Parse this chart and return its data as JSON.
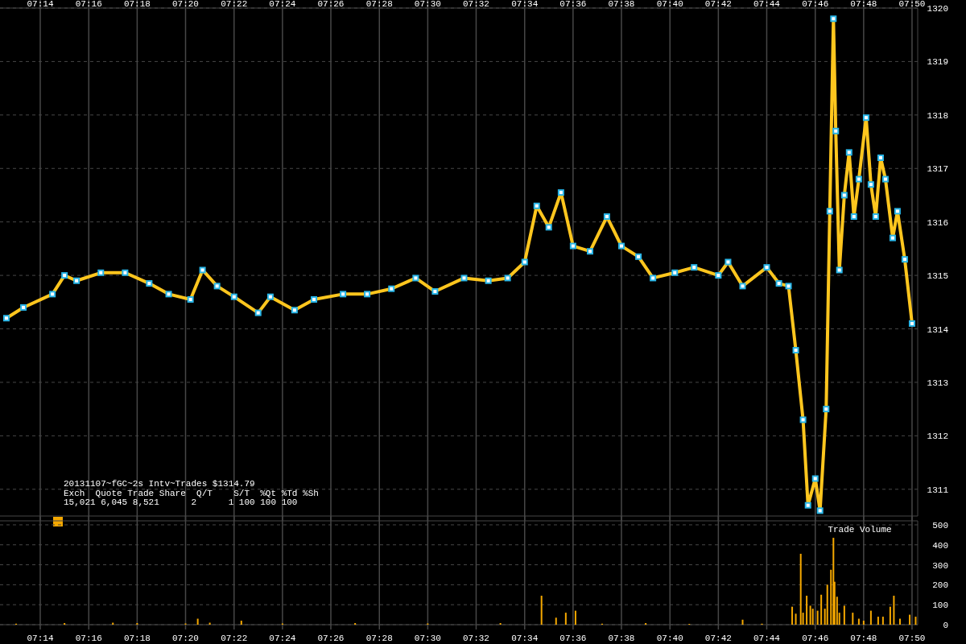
{
  "chart_data": [
    {
      "type": "line",
      "annotations": [
        "20131107~fGC~2s Intv~Trades $1314.79",
        "Exch  Quote Trade Share  Q/T    S/T  %Qt %Td %Sh",
        "15,021 6,045 8,521      2      1 100 100 100"
      ],
      "xlim": [
        7.2056,
        7.8372
      ],
      "ylim": [
        1310.5,
        1320
      ],
      "xticks": [
        {
          "value": 7.2333,
          "label": "07:14"
        },
        {
          "value": 7.2667,
          "label": "07:16"
        },
        {
          "value": 7.3,
          "label": "07:18"
        },
        {
          "value": 7.3333,
          "label": "07:20"
        },
        {
          "value": 7.3667,
          "label": "07:22"
        },
        {
          "value": 7.4,
          "label": "07:24"
        },
        {
          "value": 7.4333,
          "label": "07:26"
        },
        {
          "value": 7.4667,
          "label": "07:28"
        },
        {
          "value": 7.5,
          "label": "07:30"
        },
        {
          "value": 7.5333,
          "label": "07:32"
        },
        {
          "value": 7.5667,
          "label": "07:34"
        },
        {
          "value": 7.6,
          "label": "07:36"
        },
        {
          "value": 7.6333,
          "label": "07:38"
        },
        {
          "value": 7.6667,
          "label": "07:40"
        },
        {
          "value": 7.7,
          "label": "07:42"
        },
        {
          "value": 7.7333,
          "label": "07:44"
        },
        {
          "value": 7.7667,
          "label": "07:46"
        },
        {
          "value": 7.8,
          "label": "07:48"
        },
        {
          "value": 7.8333,
          "label": "07:50"
        }
      ],
      "yticks": [
        1311,
        1312,
        1313,
        1314,
        1315,
        1316,
        1317,
        1318,
        1319,
        1320
      ],
      "grid": true,
      "marker": "square",
      "series": [
        {
          "color": "#ffc61e",
          "x": [
            7.21,
            7.2217,
            7.2417,
            7.25,
            7.2583,
            7.275,
            7.2917,
            7.3083,
            7.3217,
            7.3367,
            7.345,
            7.355,
            7.3667,
            7.3833,
            7.3917,
            7.4083,
            7.4217,
            7.4417,
            7.4583,
            7.475,
            7.4917,
            7.505,
            7.525,
            7.5417,
            7.555,
            7.5667,
            7.575,
            7.5833,
            7.5917,
            7.6,
            7.6117,
            7.6233,
            7.6333,
            7.645,
            7.655,
            7.67,
            7.6833,
            7.7,
            7.7067,
            7.7167,
            7.7333,
            7.7417,
            7.7483,
            7.7533,
            7.7583,
            7.7617,
            7.7667,
            7.77,
            7.7742,
            7.7767,
            7.7792,
            7.7808,
            7.7833,
            7.7867,
            7.79,
            7.7933,
            7.7967,
            7.8017,
            7.805,
            7.8083,
            7.8117,
            7.815,
            7.82,
            7.8233,
            7.8283,
            7.8333
          ],
          "values": [
            1314.2,
            1314.4,
            1314.65,
            1315.0,
            1314.9,
            1315.05,
            1315.05,
            1314.85,
            1314.65,
            1314.55,
            1315.1,
            1314.8,
            1314.6,
            1314.3,
            1314.6,
            1314.35,
            1314.55,
            1314.65,
            1314.65,
            1314.75,
            1314.95,
            1314.7,
            1314.95,
            1314.9,
            1314.95,
            1315.25,
            1316.3,
            1315.9,
            1316.55,
            1315.55,
            1315.45,
            1316.1,
            1315.55,
            1315.35,
            1314.95,
            1315.05,
            1315.15,
            1315.0,
            1315.25,
            1314.8,
            1315.15,
            1314.85,
            1314.8,
            1313.6,
            1312.3,
            1310.7,
            1311.2,
            1310.6,
            1312.5,
            1316.2,
            1319.8,
            1317.7,
            1315.1,
            1316.5,
            1317.3,
            1316.1,
            1316.8,
            1317.95,
            1316.7,
            1316.1,
            1317.2,
            1316.8,
            1315.7,
            1316.2,
            1315.3,
            1314.1
          ]
        }
      ]
    },
    {
      "type": "bar",
      "title": "Trade Volume",
      "xlim": [
        7.2056,
        7.8372
      ],
      "ylim": [
        0,
        520
      ],
      "xticks": [
        {
          "value": 7.2333,
          "label": "07:14"
        },
        {
          "value": 7.2667,
          "label": "07:16"
        },
        {
          "value": 7.3,
          "label": "07:18"
        },
        {
          "value": 7.3333,
          "label": "07:20"
        },
        {
          "value": 7.3667,
          "label": "07:22"
        },
        {
          "value": 7.4,
          "label": "07:24"
        },
        {
          "value": 7.4333,
          "label": "07:26"
        },
        {
          "value": 7.4667,
          "label": "07:28"
        },
        {
          "value": 7.5,
          "label": "07:30"
        },
        {
          "value": 7.5333,
          "label": "07:32"
        },
        {
          "value": 7.5667,
          "label": "07:34"
        },
        {
          "value": 7.6,
          "label": "07:36"
        },
        {
          "value": 7.6333,
          "label": "07:38"
        },
        {
          "value": 7.6667,
          "label": "07:40"
        },
        {
          "value": 7.7,
          "label": "07:42"
        },
        {
          "value": 7.7333,
          "label": "07:44"
        },
        {
          "value": 7.7667,
          "label": "07:46"
        },
        {
          "value": 7.8,
          "label": "07:48"
        },
        {
          "value": 7.8333,
          "label": "07:50"
        }
      ],
      "yticks": [
        0,
        100,
        200,
        300,
        400,
        500
      ],
      "grid": true,
      "series": [
        {
          "color": "#f5a800",
          "x": [
            7.2167,
            7.25,
            7.2833,
            7.3,
            7.3333,
            7.3417,
            7.35,
            7.3717,
            7.4,
            7.45,
            7.5,
            7.55,
            7.5783,
            7.5883,
            7.595,
            7.6017,
            7.62,
            7.65,
            7.68,
            7.7167,
            7.73,
            7.7508,
            7.7533,
            7.7567,
            7.7583,
            7.7608,
            7.7633,
            7.765,
            7.7683,
            7.7708,
            7.7733,
            7.775,
            7.7775,
            7.7792,
            7.78,
            7.7817,
            7.7833,
            7.7867,
            7.7925,
            7.7967,
            7.8,
            7.805,
            7.81,
            7.8133,
            7.8183,
            7.8208,
            7.825,
            7.8317,
            7.8358
          ],
          "values": [
            5,
            8,
            10,
            8,
            6,
            30,
            10,
            20,
            6,
            8,
            6,
            8,
            145,
            35,
            60,
            70,
            5,
            8,
            4,
            25,
            5,
            90,
            55,
            355,
            60,
            145,
            95,
            80,
            70,
            150,
            80,
            200,
            275,
            435,
            215,
            140,
            60,
            95,
            60,
            30,
            20,
            70,
            40,
            40,
            90,
            145,
            30,
            50,
            40
          ]
        }
      ]
    }
  ]
}
